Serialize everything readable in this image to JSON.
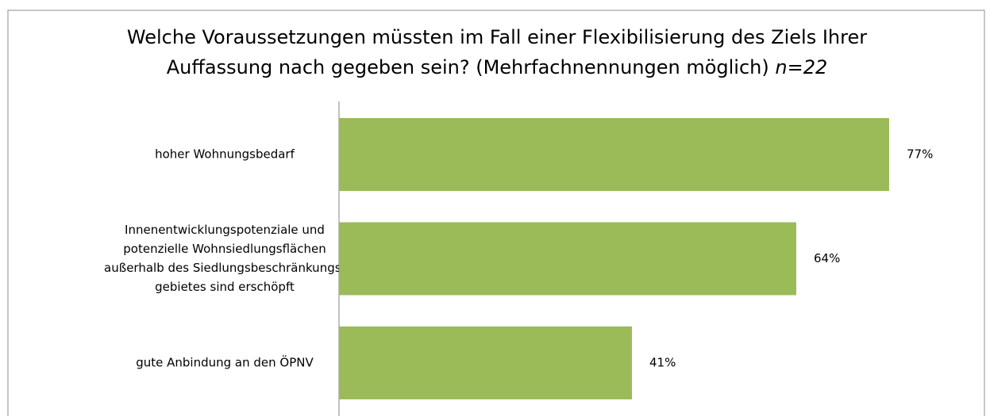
{
  "chart_data": {
    "type": "barh",
    "title": [
      "Welche Voraussetzungen müssten im Fall einer Flexibilisierung des Ziels Ihrer",
      "Auffassung nach gegeben sein? (Mehrfachnennungen möglich)"
    ],
    "title_note": "n=22",
    "categories": [
      [
        "hoher Wohnungsbedarf"
      ],
      [
        "Innenentwicklungspotenziale und",
        "potenzielle Wohnsiedlungsflächen",
        "außerhalb des Siedlungsbeschränkungs-",
        "gebietes sind erschöpft"
      ],
      [
        "gute Anbindung  an den ÖPNV"
      ]
    ],
    "values": [
      77,
      64,
      41
    ],
    "value_labels": [
      "77%",
      "64%",
      "41%"
    ],
    "color": "#9bbb59",
    "xlim": [
      0,
      85
    ]
  }
}
